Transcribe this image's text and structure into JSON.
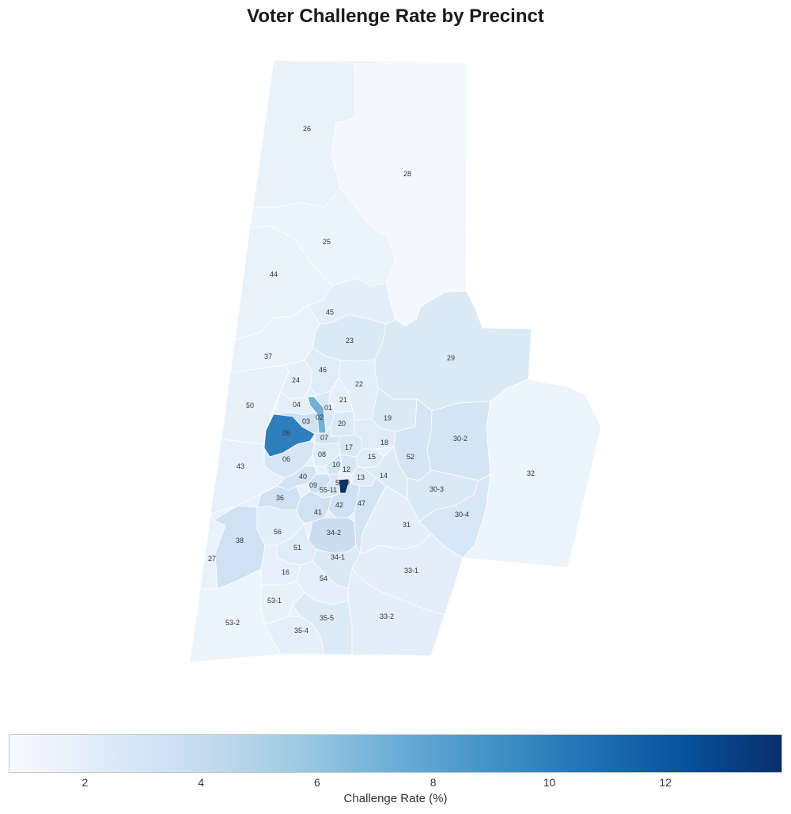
{
  "title": "Voter Challenge Rate by Precinct",
  "colormap": [
    "#f7fbff",
    "#deebf7",
    "#c6dbef",
    "#9ecae1",
    "#6baed6",
    "#4292c6",
    "#2171b5",
    "#08519c",
    "#08306b"
  ],
  "boundary_color": "#ffffff",
  "label_color": "#333333",
  "colorbar": {
    "label": "Challenge Rate (%)",
    "ticks": [
      2,
      4,
      6,
      8,
      10,
      12
    ],
    "vmin": 0.7,
    "vmax": 14.0
  },
  "precincts": [
    {
      "label": "01",
      "rate": 2.6
    },
    {
      "label": "02",
      "rate": 7.2
    },
    {
      "label": "03",
      "rate": 3.4
    },
    {
      "label": "04",
      "rate": 1.9
    },
    {
      "label": "05",
      "rate": 10.0
    },
    {
      "label": "06",
      "rate": 2.9
    },
    {
      "label": "07",
      "rate": 3.0
    },
    {
      "label": "08",
      "rate": 2.2
    },
    {
      "label": "09",
      "rate": 3.3
    },
    {
      "label": "10",
      "rate": 3.0
    },
    {
      "label": "12",
      "rate": 2.8
    },
    {
      "label": "13",
      "rate": 2.3
    },
    {
      "label": "14",
      "rate": 2.4
    },
    {
      "label": "15",
      "rate": 2.3
    },
    {
      "label": "16",
      "rate": 1.8
    },
    {
      "label": "17",
      "rate": 2.7
    },
    {
      "label": "18",
      "rate": 2.3
    },
    {
      "label": "19",
      "rate": 2.5
    },
    {
      "label": "20",
      "rate": 2.5
    },
    {
      "label": "21",
      "rate": 1.8
    },
    {
      "label": "22",
      "rate": 2.1
    },
    {
      "label": "23",
      "rate": 2.5
    },
    {
      "label": "24",
      "rate": 1.9
    },
    {
      "label": "25",
      "rate": 1.5
    },
    {
      "label": "26",
      "rate": 1.6
    },
    {
      "label": "27",
      "rate": 1.6
    },
    {
      "label": "28",
      "rate": 1.0
    },
    {
      "label": "29",
      "rate": 2.5
    },
    {
      "label": "30-2",
      "rate": 3.1
    },
    {
      "label": "30-3",
      "rate": 2.6
    },
    {
      "label": "30-4",
      "rate": 2.8
    },
    {
      "label": "31",
      "rate": 2.0
    },
    {
      "label": "32",
      "rate": 1.4
    },
    {
      "label": "33-1",
      "rate": 2.0
    },
    {
      "label": "33-2",
      "rate": 2.0
    },
    {
      "label": "34-1",
      "rate": 2.5
    },
    {
      "label": "34-2",
      "rate": 3.7
    },
    {
      "label": "35-4",
      "rate": 1.9
    },
    {
      "label": "35-5",
      "rate": 2.4
    },
    {
      "label": "36",
      "rate": 3.3
    },
    {
      "label": "37",
      "rate": 1.6
    },
    {
      "label": "38",
      "rate": 3.4
    },
    {
      "label": "40",
      "rate": 3.2
    },
    {
      "label": "41",
      "rate": 3.4
    },
    {
      "label": "42",
      "rate": 3.4
    },
    {
      "label": "43",
      "rate": 1.8
    },
    {
      "label": "44",
      "rate": 1.6
    },
    {
      "label": "45",
      "rate": 2.0
    },
    {
      "label": "46",
      "rate": 2.3
    },
    {
      "label": "47",
      "rate": 3.1
    },
    {
      "label": "50",
      "rate": 1.7
    },
    {
      "label": "51",
      "rate": 2.3
    },
    {
      "label": "52",
      "rate": 3.0
    },
    {
      "label": "53-1",
      "rate": 1.7
    },
    {
      "label": "53-2",
      "rate": 1.4
    },
    {
      "label": "54",
      "rate": 1.9
    },
    {
      "label": "55-11",
      "rate": 2.6
    },
    {
      "label": "55-9",
      "rate": 14.0
    },
    {
      "label": "56",
      "rate": 2.1
    }
  ]
}
